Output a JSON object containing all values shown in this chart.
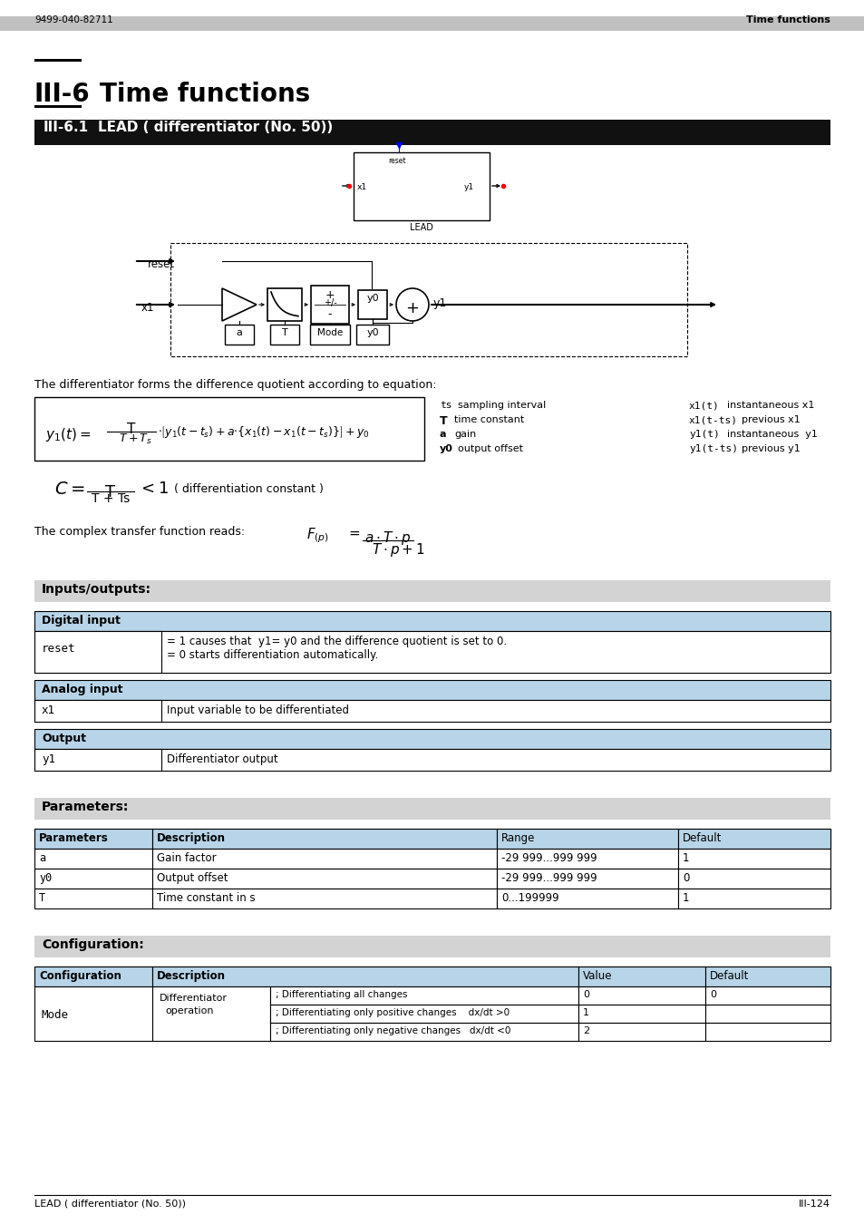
{
  "header_left": "9499-040-82711",
  "header_right": "Time functions",
  "section_num": "III-6",
  "section_title": "Time functions",
  "subsection_num": "III-6.1",
  "subsection_title": "LEAD ( differentiator (No. 50))",
  "description_text": "The differentiator forms the difference quotient according to equation:",
  "footer_left": "LEAD ( differentiator (No. 50))",
  "footer_right": "III-124",
  "io_section_title": "Inputs/outputs:",
  "digital_input_header": "Digital input",
  "digital_input_name": "reset",
  "digital_input_desc1": "= 1 causes that  y1= y0 and the difference quotient is set to 0.",
  "digital_input_desc2": "= 0 starts differentiation automatically.",
  "analog_input_header": "Analog input",
  "analog_input_name": "x1",
  "analog_input_desc": "Input variable to be differentiated",
  "output_header": "Output",
  "output_name": "y1",
  "output_desc": "Differentiator output",
  "params_section_title": "Parameters:",
  "params_headers": [
    "Parameters",
    "Description",
    "Range",
    "Default"
  ],
  "params_rows": [
    [
      "a",
      "Gain factor",
      "-29 999...999 999",
      "1"
    ],
    [
      "y0",
      "Output offset",
      "-29 999...999 999",
      "0"
    ],
    [
      "T",
      "Time constant in s",
      "0...199999",
      "1"
    ]
  ],
  "config_section_title": "Configuration:",
  "config_headers": [
    "Configuration",
    "Description",
    "Value",
    "Default"
  ],
  "color_header_bg": "#c0c0c0",
  "color_table_header_bg": "#b8d4e8",
  "color_section_bg": "#d3d3d3",
  "color_dark_header": "#111111",
  "color_white": "#ffffff"
}
